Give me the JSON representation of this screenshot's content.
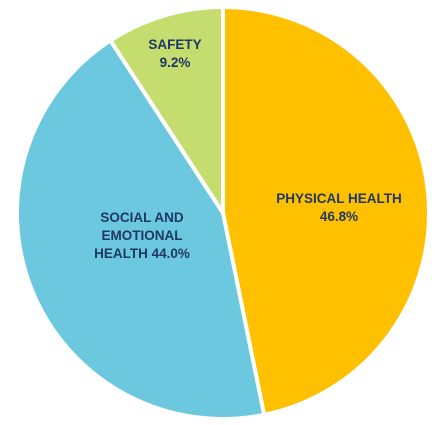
{
  "chart_data": {
    "type": "pie",
    "title": "",
    "start_angle_deg": 0,
    "direction": "clockwise",
    "slices": [
      {
        "name": "PHYSICAL HEALTH",
        "value": 46.8,
        "value_label": "46.8%",
        "label_lines": [
          "PHYSICAL HEALTH",
          "46.8%"
        ],
        "color": "#FFC000"
      },
      {
        "name": "SOCIAL AND EMOTIONAL HEALTH",
        "value": 44.0,
        "value_label": "44.0%",
        "label_lines": [
          "SOCIAL AND",
          "EMOTIONAL",
          "HEALTH 44.0%"
        ],
        "color": "#6CC8DE"
      },
      {
        "name": "SAFETY",
        "value": 9.2,
        "value_label": "9.2%",
        "label_lines": [
          "SAFETY",
          "9.2%"
        ],
        "color": "#C5DC6F"
      }
    ],
    "legend": "none",
    "label_color": "#1F3864",
    "slice_border_color": "#FFFFFF"
  }
}
